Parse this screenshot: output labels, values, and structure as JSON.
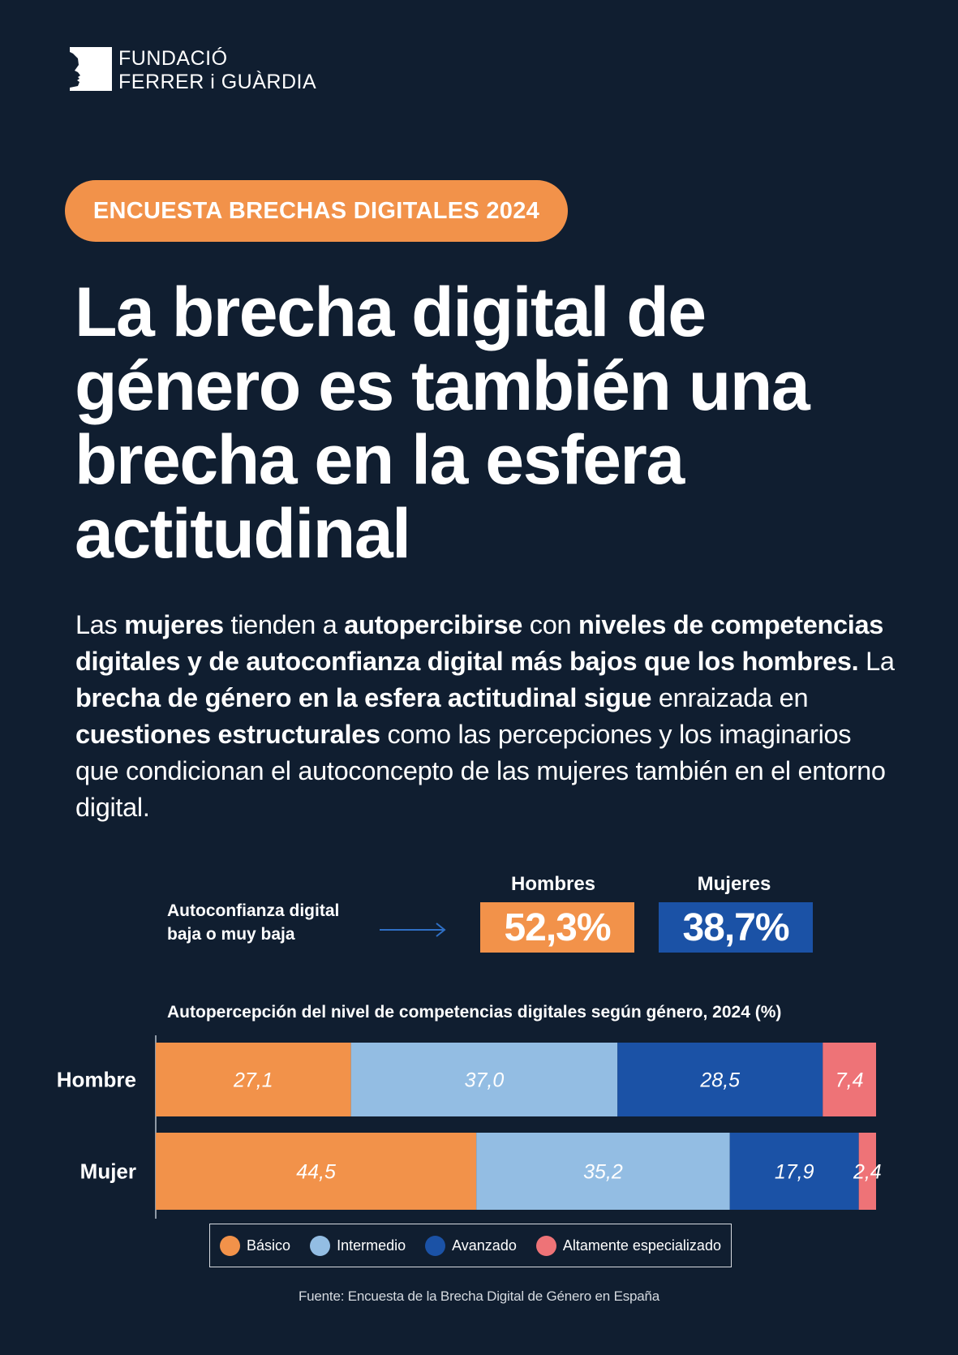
{
  "brand": {
    "line1": "FUNDACIÓ",
    "line2": "FERRER i GUÀRDIA"
  },
  "badge": "ENCUESTA BRECHAS DIGITALES 2024",
  "title": "La brecha digital de género es también una brecha en la esfera actitudinal",
  "intro": [
    {
      "t": "Las ",
      "b": false
    },
    {
      "t": "mujeres",
      "b": true
    },
    {
      "t": " tienden a ",
      "b": false
    },
    {
      "t": "autopercibirse",
      "b": true
    },
    {
      "t": " con ",
      "b": false
    },
    {
      "t": "niveles de competencias digitales y de autoconfianza digital más bajos que los hombres.",
      "b": true
    },
    {
      "t": " La ",
      "b": false
    },
    {
      "t": "brecha de género en la esfera actitudinal sigue",
      "b": true
    },
    {
      "t": " enraizada en ",
      "b": false
    },
    {
      "t": "cuestiones estructurales",
      "b": true
    },
    {
      "t": " como las percepciones y los imaginarios que condicionan el autoconcepto de las mujeres también en el entorno digital.",
      "b": false
    }
  ],
  "kpi": {
    "label": "Autoconfianza digital baja o muy baja",
    "men_label": "Hombres",
    "men_value": "52,3%",
    "women_label": "Mujeres",
    "women_value": "38,7%"
  },
  "colors": {
    "background": "#101e30",
    "basico": "#f2924a",
    "intermedio": "#93bde3",
    "avanzado": "#1b52a6",
    "altamente": "#ee7377"
  },
  "chart_data": {
    "type": "bar",
    "orientation": "horizontal",
    "stacked": true,
    "title": "Autopercepción del nivel de competencias digitales según género, 2024 (%)",
    "categories": [
      "Hombre",
      "Mujer"
    ],
    "series": [
      {
        "name": "Básico",
        "values": [
          27.1,
          44.5
        ],
        "labels": [
          "27,1",
          "44,5"
        ],
        "color": "#f2924a"
      },
      {
        "name": "Intermedio",
        "values": [
          37.0,
          35.2
        ],
        "labels": [
          "37,0",
          "35,2"
        ],
        "color": "#93bde3"
      },
      {
        "name": "Avanzado",
        "values": [
          28.5,
          17.9
        ],
        "labels": [
          "28,5",
          "17,9"
        ],
        "color": "#1b52a6"
      },
      {
        "name": "Altamente especializado",
        "values": [
          7.4,
          2.4
        ],
        "labels": [
          "7,4",
          "2,4"
        ],
        "color": "#ee7377"
      }
    ],
    "xlim": [
      0,
      100
    ],
    "legend": "bottom"
  },
  "source": "Fuente: Encuesta de la Brecha Digital de Género en España"
}
